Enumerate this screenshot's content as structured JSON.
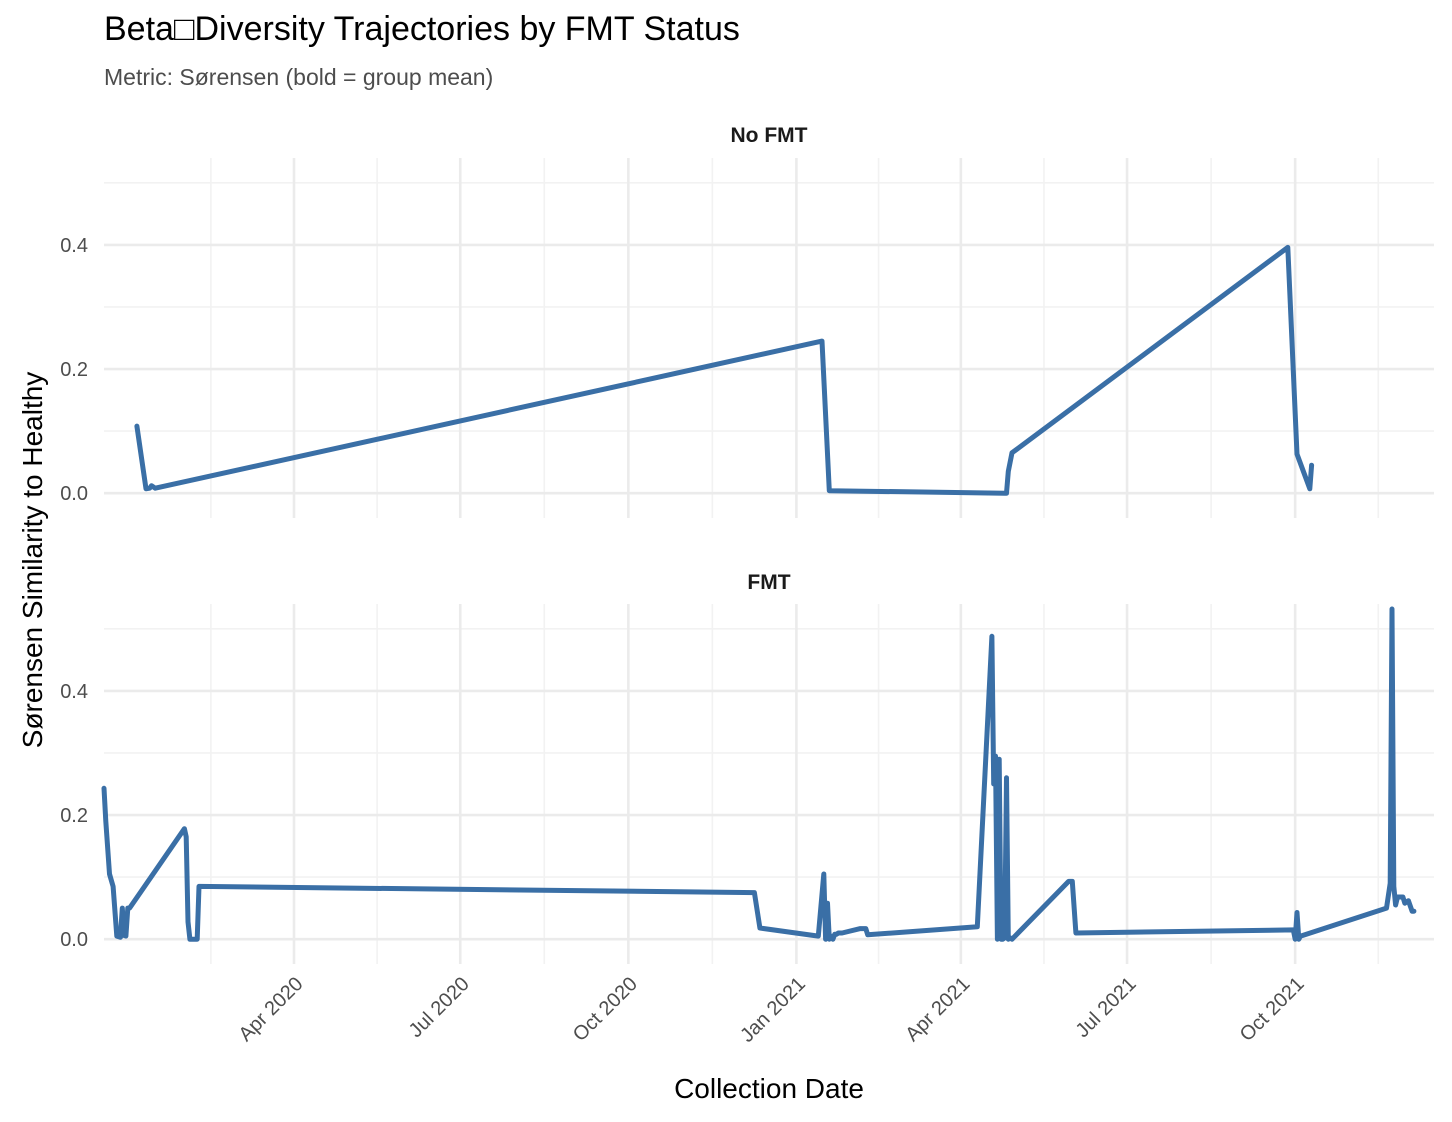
{
  "chart_data": {
    "type": "line",
    "title": "Beta□Diversity Trajectories by FMT Status",
    "subtitle": "Metric: Sørensen (bold = group mean)",
    "xlabel": "Collection Date",
    "ylabel": "Sørensen Similarity to Healthy",
    "xlim": [
      "2019-12-19",
      "2021-12-16"
    ],
    "ylim": [
      -0.04,
      0.54
    ],
    "x_ticks": [
      "Apr 2020",
      "Jul 2020",
      "Oct 2020",
      "Jan 2021",
      "Apr 2021",
      "Jul 2021",
      "Oct 2021"
    ],
    "x_tick_dates": [
      "2020-04-01",
      "2020-07-01",
      "2020-10-01",
      "2021-01-01",
      "2021-04-01",
      "2021-07-01",
      "2021-10-01"
    ],
    "y_ticks": [
      "0.0",
      "0.2",
      "0.4"
    ],
    "y_tick_values": [
      0.0,
      0.2,
      0.4
    ],
    "grid": true,
    "color": "#3a6fa6",
    "panels": [
      {
        "strip": "No FMT",
        "series": [
          {
            "x": [
              "2020-01-06",
              "2020-01-11",
              "2020-01-13",
              "2020-01-14",
              "2020-01-16",
              "2021-01-15",
              "2021-01-19",
              "2021-04-25",
              "2021-04-26",
              "2021-04-27",
              "2021-04-29",
              "2021-09-27",
              "2021-10-02",
              "2021-10-09",
              "2021-10-10"
            ],
            "y": [
              0.108,
              0.007,
              0.008,
              0.012,
              0.008,
              0.245,
              0.004,
              0.0,
              0.0,
              0.035,
              0.065,
              0.396,
              0.063,
              0.007,
              0.045
            ]
          }
        ]
      },
      {
        "strip": "FMT",
        "series": [
          {
            "x": [
              "2019-12-19",
              "2019-12-20",
              "2019-12-22",
              "2019-12-24",
              "2019-12-26",
              "2019-12-28",
              "2019-12-29",
              "2019-12-30",
              "2019-12-31",
              "2020-01-01",
              "2020-01-02",
              "2020-02-01",
              "2020-02-02",
              "2020-02-03",
              "2020-02-04",
              "2020-02-06",
              "2020-02-07",
              "2020-02-08",
              "2020-02-09",
              "2020-12-09",
              "2020-12-12",
              "2021-01-13",
              "2021-01-16",
              "2021-01-17",
              "2021-01-18",
              "2021-01-19",
              "2021-01-20",
              "2021-01-21",
              "2021-01-22",
              "2021-01-23",
              "2021-01-24",
              "2021-01-26",
              "2021-02-05",
              "2021-02-08",
              "2021-02-09",
              "2021-04-10",
              "2021-04-18",
              "2021-04-19",
              "2021-04-20",
              "2021-04-21",
              "2021-04-22",
              "2021-04-23",
              "2021-04-24",
              "2021-04-25",
              "2021-04-26",
              "2021-04-27",
              "2021-04-28",
              "2021-04-29",
              "2021-05-30",
              "2021-06-01",
              "2021-06-03",
              "2021-09-30",
              "2021-10-01",
              "2021-10-02",
              "2021-10-03",
              "2021-10-04",
              "2021-11-20",
              "2021-11-22",
              "2021-11-23",
              "2021-11-24",
              "2021-11-25",
              "2021-11-26",
              "2021-11-29",
              "2021-11-30",
              "2021-12-02",
              "2021-12-04",
              "2021-12-05"
            ],
            "y": [
              0.243,
              0.19,
              0.105,
              0.085,
              0.005,
              0.003,
              0.05,
              0.006,
              0.005,
              0.05,
              0.05,
              0.178,
              0.165,
              0.028,
              0.0,
              0.0,
              0.0,
              0.0,
              0.085,
              0.075,
              0.018,
              0.005,
              0.105,
              0.0,
              0.058,
              0.0,
              0.005,
              0.0,
              0.008,
              0.008,
              0.01,
              0.01,
              0.017,
              0.017,
              0.007,
              0.02,
              0.488,
              0.25,
              0.295,
              0.0,
              0.29,
              0.0,
              0.0,
              0.002,
              0.26,
              0.0,
              0.002,
              0.0,
              0.093,
              0.093,
              0.01,
              0.015,
              0.0,
              0.043,
              0.0,
              0.005,
              0.05,
              0.09,
              0.532,
              0.085,
              0.055,
              0.068,
              0.068,
              0.058,
              0.062,
              0.045,
              0.045
            ]
          }
        ]
      }
    ]
  }
}
